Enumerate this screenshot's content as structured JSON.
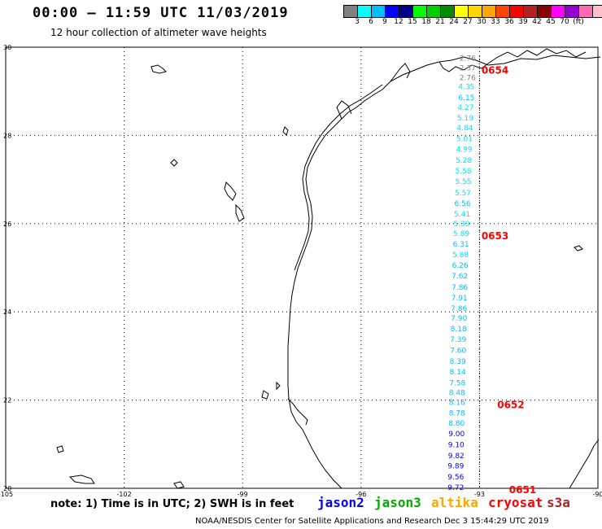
{
  "header": {
    "title": "00:00 – 11:59 UTC 11/03/2019",
    "subtitle": "12 hour collection of altimeter wave heights"
  },
  "colorbar": {
    "colors": [
      "#808080",
      "#00ffff",
      "#00bfff",
      "#0000ff",
      "#00008b",
      "#00ff00",
      "#00cd00",
      "#008b00",
      "#ffff00",
      "#ffd700",
      "#ffa500",
      "#ff4500",
      "#ff0000",
      "#b22222",
      "#8b0000",
      "#ff00ff",
      "#9400d3",
      "#ff69b4",
      "#ffc0cb",
      "#000000"
    ],
    "labels": [
      "3",
      "6",
      "9",
      "12",
      "15",
      "18",
      "21",
      "24",
      "27",
      "30",
      "33",
      "36",
      "39",
      "42",
      "45",
      "70",
      "(ft)"
    ]
  },
  "axes": {
    "lon_labels": [
      "-105",
      "-102",
      "-99",
      "-96",
      "-93",
      "-90"
    ],
    "lat_labels": [
      "30",
      "28",
      "26",
      "24",
      "22",
      "20"
    ]
  },
  "chart_data": {
    "type": "scatter",
    "title": "12 hour collection of altimeter wave heights",
    "xlim": [
      -105,
      -90
    ],
    "ylim": [
      20,
      30
    ],
    "grid": true,
    "series": [
      {
        "name": "cryosat",
        "color": "#ff0000",
        "points": [
          {
            "lon": -93.3,
            "lat": 29.7,
            "swh": "2.76"
          },
          {
            "lon": -93.3,
            "lat": 29.47,
            "swh": "2.37"
          },
          {
            "lon": -93.3,
            "lat": 29.25,
            "swh": "2.76"
          },
          {
            "lon": -93.33,
            "lat": 29.05,
            "swh": "4.35"
          },
          {
            "lon": -93.33,
            "lat": 28.8,
            "swh": "6.15"
          },
          {
            "lon": -93.35,
            "lat": 28.58,
            "swh": "4.27"
          },
          {
            "lon": -93.36,
            "lat": 28.34,
            "swh": "5.19"
          },
          {
            "lon": -93.37,
            "lat": 28.12,
            "swh": "4.84"
          },
          {
            "lon": -93.38,
            "lat": 27.87,
            "swh": "5.01"
          },
          {
            "lon": -93.39,
            "lat": 27.63,
            "swh": "4.99"
          },
          {
            "lon": -93.4,
            "lat": 27.38,
            "swh": "5.28"
          },
          {
            "lon": -93.41,
            "lat": 27.14,
            "swh": "5.58"
          },
          {
            "lon": -93.41,
            "lat": 26.9,
            "swh": "5.55"
          },
          {
            "lon": -93.42,
            "lat": 26.64,
            "swh": "5.57"
          },
          {
            "lon": -93.43,
            "lat": 26.4,
            "swh": "6.56"
          },
          {
            "lon": -93.44,
            "lat": 26.16,
            "swh": "5.41"
          },
          {
            "lon": -93.45,
            "lat": 25.94,
            "swh": "5.39"
          },
          {
            "lon": -93.46,
            "lat": 25.72,
            "swh": "5.89"
          },
          {
            "lon": -93.47,
            "lat": 25.48,
            "swh": "6.31"
          },
          {
            "lon": -93.48,
            "lat": 25.24,
            "swh": "5.88"
          },
          {
            "lon": -93.49,
            "lat": 25.0,
            "swh": "6.26"
          },
          {
            "lon": -93.5,
            "lat": 24.76,
            "swh": "7.62"
          },
          {
            "lon": -93.5,
            "lat": 24.5,
            "swh": "7.86"
          },
          {
            "lon": -93.51,
            "lat": 24.26,
            "swh": "7.91"
          },
          {
            "lon": -93.52,
            "lat": 24.02,
            "swh": "7.86"
          },
          {
            "lon": -93.52,
            "lat": 23.8,
            "swh": "7.90"
          },
          {
            "lon": -93.53,
            "lat": 23.56,
            "swh": "8.18"
          },
          {
            "lon": -93.54,
            "lat": 23.32,
            "swh": "7.39"
          },
          {
            "lon": -93.54,
            "lat": 23.07,
            "swh": "7.60"
          },
          {
            "lon": -93.55,
            "lat": 22.82,
            "swh": "8.39"
          },
          {
            "lon": -93.55,
            "lat": 22.58,
            "swh": "8.14"
          },
          {
            "lon": -93.56,
            "lat": 22.33,
            "swh": "7.58"
          },
          {
            "lon": -93.57,
            "lat": 22.11,
            "swh": "8.48"
          },
          {
            "lon": -93.57,
            "lat": 21.89,
            "swh": "8.16"
          },
          {
            "lon": -93.57,
            "lat": 21.65,
            "swh": "8.78"
          },
          {
            "lon": -93.58,
            "lat": 21.42,
            "swh": "8.80"
          },
          {
            "lon": -93.58,
            "lat": 21.18,
            "swh": "9.00"
          },
          {
            "lon": -93.59,
            "lat": 20.93,
            "swh": "9.10"
          },
          {
            "lon": -93.59,
            "lat": 20.68,
            "swh": "9.82"
          },
          {
            "lon": -93.6,
            "lat": 20.45,
            "swh": "9.89"
          },
          {
            "lon": -93.6,
            "lat": 20.2,
            "swh": "9.56"
          },
          {
            "lon": -93.6,
            "lat": 19.96,
            "swh": "9.72"
          }
        ]
      }
    ],
    "time_marks": [
      {
        "label": "0654",
        "lat": 29.47,
        "lon": -92.95
      },
      {
        "label": "0653",
        "lat": 25.72,
        "lon": -92.95
      },
      {
        "label": "0652",
        "lat": 21.89,
        "lon": -92.55
      },
      {
        "label": "0651",
        "lat": 19.96,
        "lon": -92.25
      }
    ]
  },
  "legend": {
    "note": "note: 1) Time is in UTC; 2) SWH is in feet",
    "satellites": [
      {
        "name": "jason2",
        "color": "#0000ff"
      },
      {
        "name": "jason3",
        "color": "#00aa00"
      },
      {
        "name": "altika",
        "color": "#ffa500"
      },
      {
        "name": "cryosat",
        "color": "#ff0000"
      },
      {
        "name": "s3a",
        "color": "#b22222"
      }
    ]
  },
  "footer": {
    "credit": "NOAA/NESDIS Center for Satellite Applications and Research",
    "timestamp": "Dec  3 15:44:29 UTC 2019"
  }
}
